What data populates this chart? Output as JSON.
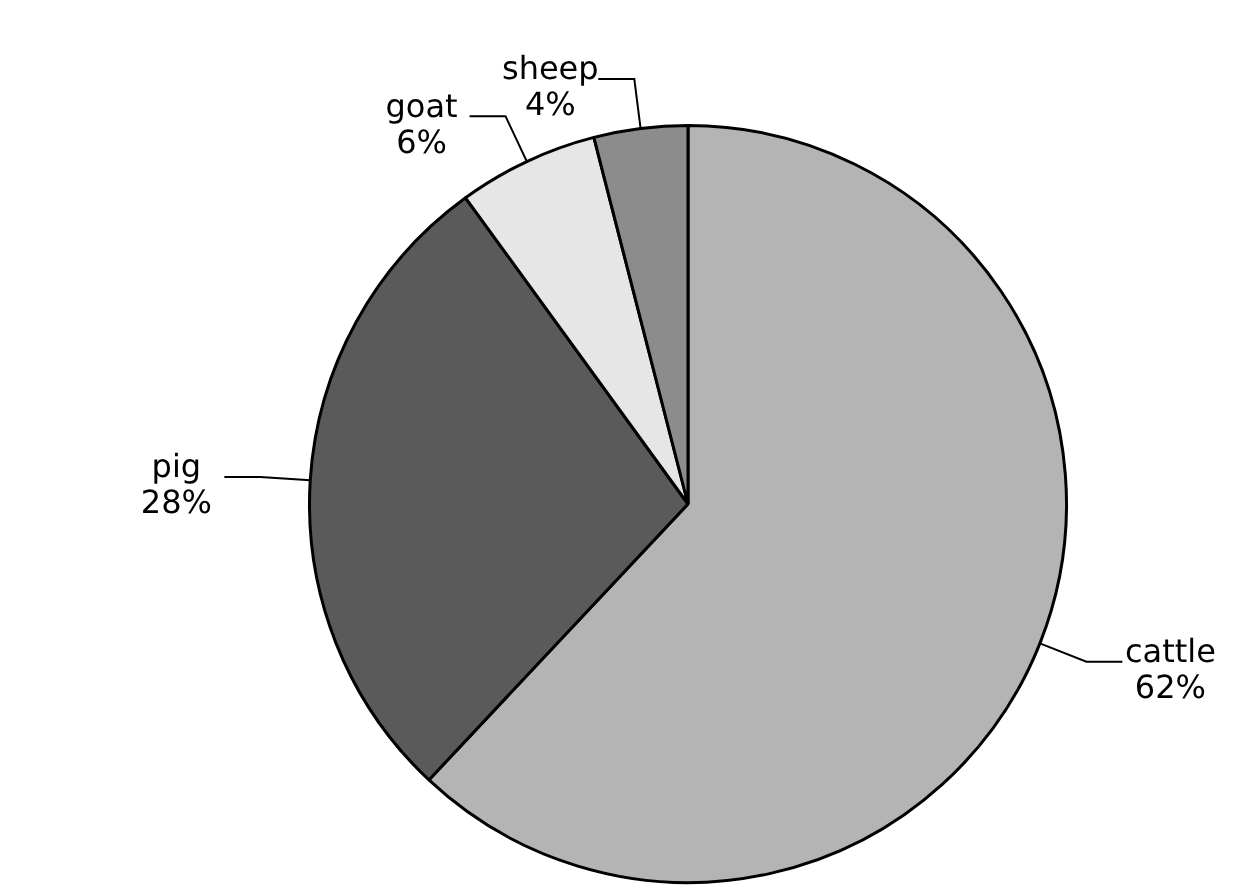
{
  "chart_data": {
    "type": "pie",
    "categories": [
      "cattle",
      "pig",
      "goat",
      "sheep"
    ],
    "values": [
      62,
      28,
      6,
      4
    ],
    "value_labels": [
      "62%",
      "28%",
      "6%",
      "4%"
    ],
    "colors": [
      "#b4b4b4",
      "#5a5a5a",
      "#e6e6e6",
      "#8c8c8c"
    ],
    "legend": false
  }
}
